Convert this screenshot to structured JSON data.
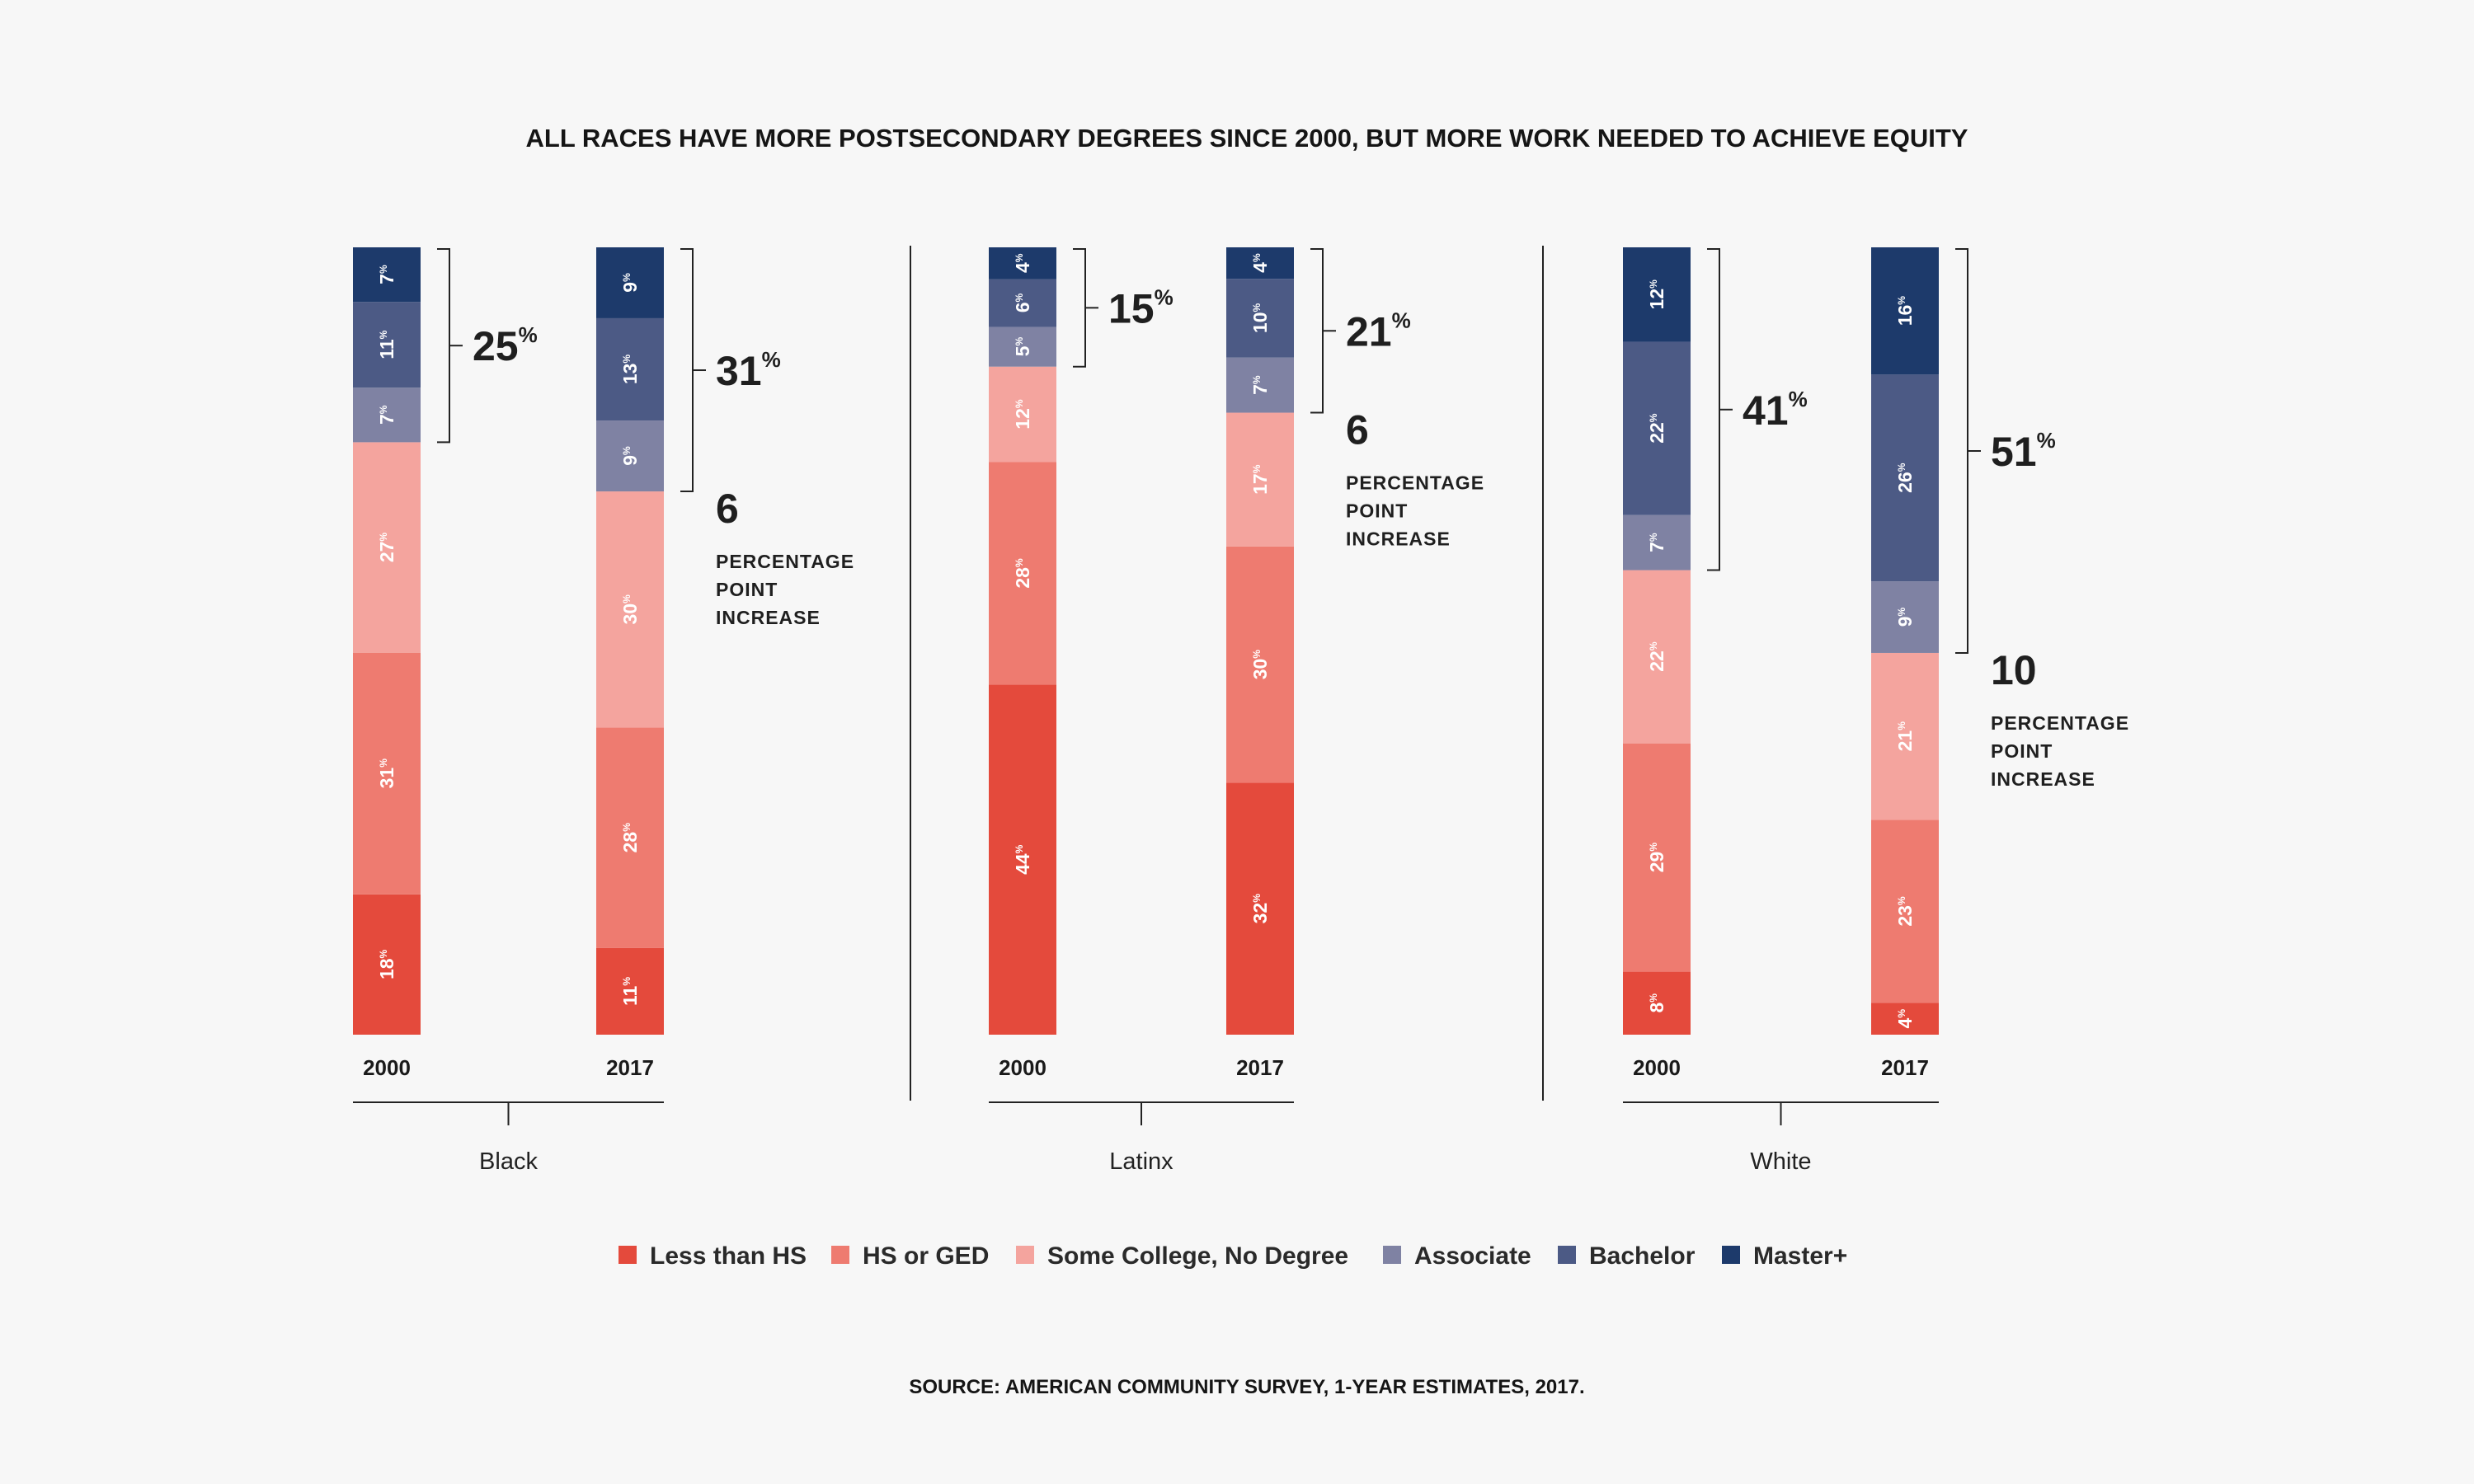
{
  "chart_data": {
    "type": "bar",
    "stacked": true,
    "title": "ALL RACES HAVE MORE POSTSECONDARY DEGREES SINCE 2000, BUT MORE WORK NEEDED TO ACHIEVE EQUITY",
    "source": "SOURCE: AMERICAN COMMUNITY SURVEY, 1-YEAR ESTIMATES, 2017.",
    "percent_sign": "%",
    "increase_label_lines": [
      "PERCENTAGE",
      "POINT",
      "INCREASE"
    ],
    "categories_order": [
      "Less than HS",
      "HS or GED",
      "Some College, No Degree",
      "Associate",
      "Bachelor",
      "Master+"
    ],
    "colors": {
      "Less than HS": "#e44a3c",
      "HS or GED": "#ee7b70",
      "Some College, No Degree": "#f4a49e",
      "Associate": "#7f82a3",
      "Bachelor": "#4c5a85",
      "Master+": "#1d3a6b"
    },
    "groups": [
      {
        "name": "Black",
        "bars": [
          {
            "year": "2000",
            "values": [
              18,
              31,
              27,
              7,
              11,
              7
            ]
          },
          {
            "year": "2017",
            "values": [
              11,
              28,
              30,
              9,
              13,
              9
            ]
          }
        ],
        "degree_totals": [
          25,
          31
        ],
        "increase": 6
      },
      {
        "name": "Latinx",
        "bars": [
          {
            "year": "2000",
            "values": [
              44,
              28,
              12,
              5,
              6,
              4
            ]
          },
          {
            "year": "2017",
            "values": [
              32,
              30,
              17,
              7,
              10,
              4
            ]
          }
        ],
        "degree_totals": [
          15,
          21
        ],
        "increase": 6
      },
      {
        "name": "White",
        "bars": [
          {
            "year": "2000",
            "values": [
              8,
              29,
              22,
              7,
              22,
              12
            ]
          },
          {
            "year": "2017",
            "values": [
              4,
              23,
              21,
              9,
              26,
              16
            ]
          }
        ],
        "degree_totals": [
          41,
          51
        ],
        "increase": 10
      }
    ],
    "legend": [
      {
        "label": "Less than HS",
        "color": "#e44a3c"
      },
      {
        "label": "HS or GED",
        "color": "#ee7b70"
      },
      {
        "label": "Some College, No Degree",
        "color": "#f4a49e"
      },
      {
        "label": "Associate",
        "color": "#7f82a3"
      },
      {
        "label": "Bachelor",
        "color": "#4c5a85"
      },
      {
        "label": "Master+",
        "color": "#1d3a6b"
      }
    ]
  }
}
